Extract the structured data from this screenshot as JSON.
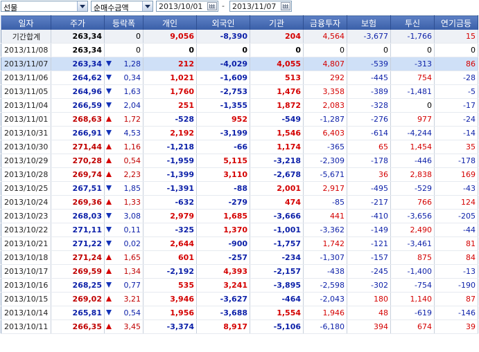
{
  "controls": {
    "market_select": "선물",
    "metric_select": "순매수금액",
    "start_date": "2013/10/01",
    "end_date": "2013/11/07",
    "date_separator": "-"
  },
  "colors": {
    "header_bg": "#4a6fb8",
    "up": "#d40000",
    "down": "#0b1fa8"
  },
  "columns": [
    "일자",
    "주가",
    "등락폭",
    "개인",
    "외국인",
    "기관",
    "금융투자",
    "보험",
    "투신",
    "연기금등"
  ],
  "rows": [
    {
      "date": "기간합계",
      "price": "263,34",
      "dir": "",
      "chg": "0",
      "indiv": "9,056",
      "foreign": "-8,390",
      "inst": "204",
      "fin": "4,564",
      "ins": "-3,677",
      "trust": "-1,766",
      "pension": "15"
    },
    {
      "date": "2013/11/08",
      "price": "263,34",
      "dir": "",
      "chg": "0",
      "indiv": "0",
      "foreign": "0",
      "inst": "0",
      "fin": "0",
      "ins": "0",
      "trust": "0",
      "pension": "0"
    },
    {
      "date": "2013/11/07",
      "price": "263,34",
      "dir": "down",
      "chg": "1,28",
      "indiv": "212",
      "foreign": "-4,029",
      "inst": "4,055",
      "fin": "4,807",
      "ins": "-539",
      "trust": "-313",
      "pension": "86"
    },
    {
      "date": "2013/11/06",
      "price": "264,62",
      "dir": "down",
      "chg": "0,34",
      "indiv": "1,021",
      "foreign": "-1,609",
      "inst": "513",
      "fin": "292",
      "ins": "-445",
      "trust": "754",
      "pension": "-28"
    },
    {
      "date": "2013/11/05",
      "price": "264,96",
      "dir": "down",
      "chg": "1,63",
      "indiv": "1,760",
      "foreign": "-2,753",
      "inst": "1,476",
      "fin": "3,358",
      "ins": "-389",
      "trust": "-1,481",
      "pension": "-5"
    },
    {
      "date": "2013/11/04",
      "price": "266,59",
      "dir": "down",
      "chg": "2,04",
      "indiv": "251",
      "foreign": "-1,355",
      "inst": "1,872",
      "fin": "2,083",
      "ins": "-328",
      "trust": "0",
      "pension": "-17"
    },
    {
      "date": "2013/11/01",
      "price": "268,63",
      "dir": "up",
      "chg": "1,72",
      "indiv": "-528",
      "foreign": "952",
      "inst": "-549",
      "fin": "-1,287",
      "ins": "-276",
      "trust": "977",
      "pension": "-24"
    },
    {
      "date": "2013/10/31",
      "price": "266,91",
      "dir": "down",
      "chg": "4,53",
      "indiv": "2,192",
      "foreign": "-3,199",
      "inst": "1,546",
      "fin": "6,403",
      "ins": "-614",
      "trust": "-4,244",
      "pension": "-14"
    },
    {
      "date": "2013/10/30",
      "price": "271,44",
      "dir": "up",
      "chg": "1,16",
      "indiv": "-1,218",
      "foreign": "-66",
      "inst": "1,174",
      "fin": "-365",
      "ins": "65",
      "trust": "1,454",
      "pension": "35"
    },
    {
      "date": "2013/10/29",
      "price": "270,28",
      "dir": "up",
      "chg": "0,54",
      "indiv": "-1,959",
      "foreign": "5,115",
      "inst": "-3,218",
      "fin": "-2,309",
      "ins": "-178",
      "trust": "-446",
      "pension": "-178"
    },
    {
      "date": "2013/10/28",
      "price": "269,74",
      "dir": "up",
      "chg": "2,23",
      "indiv": "-1,399",
      "foreign": "3,110",
      "inst": "-2,678",
      "fin": "-5,671",
      "ins": "36",
      "trust": "2,838",
      "pension": "169"
    },
    {
      "date": "2013/10/25",
      "price": "267,51",
      "dir": "down",
      "chg": "1,85",
      "indiv": "-1,391",
      "foreign": "-88",
      "inst": "2,001",
      "fin": "2,917",
      "ins": "-495",
      "trust": "-529",
      "pension": "-43"
    },
    {
      "date": "2013/10/24",
      "price": "269,36",
      "dir": "up",
      "chg": "1,33",
      "indiv": "-632",
      "foreign": "-279",
      "inst": "474",
      "fin": "-85",
      "ins": "-217",
      "trust": "766",
      "pension": "124"
    },
    {
      "date": "2013/10/23",
      "price": "268,03",
      "dir": "down",
      "chg": "3,08",
      "indiv": "2,979",
      "foreign": "1,685",
      "inst": "-3,666",
      "fin": "441",
      "ins": "-410",
      "trust": "-3,656",
      "pension": "-205"
    },
    {
      "date": "2013/10/22",
      "price": "271,11",
      "dir": "down",
      "chg": "0,11",
      "indiv": "-325",
      "foreign": "1,370",
      "inst": "-1,001",
      "fin": "-3,362",
      "ins": "-149",
      "trust": "2,490",
      "pension": "-44"
    },
    {
      "date": "2013/10/21",
      "price": "271,22",
      "dir": "down",
      "chg": "0,02",
      "indiv": "2,644",
      "foreign": "-900",
      "inst": "-1,757",
      "fin": "1,742",
      "ins": "-121",
      "trust": "-3,461",
      "pension": "81"
    },
    {
      "date": "2013/10/18",
      "price": "271,24",
      "dir": "up",
      "chg": "1,65",
      "indiv": "601",
      "foreign": "-257",
      "inst": "-234",
      "fin": "-1,307",
      "ins": "-157",
      "trust": "875",
      "pension": "84"
    },
    {
      "date": "2013/10/17",
      "price": "269,59",
      "dir": "up",
      "chg": "1,34",
      "indiv": "-2,192",
      "foreign": "4,393",
      "inst": "-2,157",
      "fin": "-438",
      "ins": "-245",
      "trust": "-1,400",
      "pension": "-13"
    },
    {
      "date": "2013/10/16",
      "price": "268,25",
      "dir": "down",
      "chg": "0,77",
      "indiv": "535",
      "foreign": "3,241",
      "inst": "-3,895",
      "fin": "-2,598",
      "ins": "-302",
      "trust": "-754",
      "pension": "-190"
    },
    {
      "date": "2013/10/15",
      "price": "269,02",
      "dir": "up",
      "chg": "3,21",
      "indiv": "3,946",
      "foreign": "-3,627",
      "inst": "-464",
      "fin": "-2,043",
      "ins": "180",
      "trust": "1,140",
      "pension": "87"
    },
    {
      "date": "2013/10/14",
      "price": "265,81",
      "dir": "down",
      "chg": "0,54",
      "indiv": "1,956",
      "foreign": "-3,688",
      "inst": "1,554",
      "fin": "1,946",
      "ins": "48",
      "trust": "-619",
      "pension": "-146"
    },
    {
      "date": "2013/10/11",
      "price": "266,35",
      "dir": "up",
      "chg": "3,45",
      "indiv": "-3,374",
      "foreign": "8,917",
      "inst": "-5,106",
      "fin": "-6,180",
      "ins": "394",
      "trust": "674",
      "pension": "39"
    }
  ]
}
